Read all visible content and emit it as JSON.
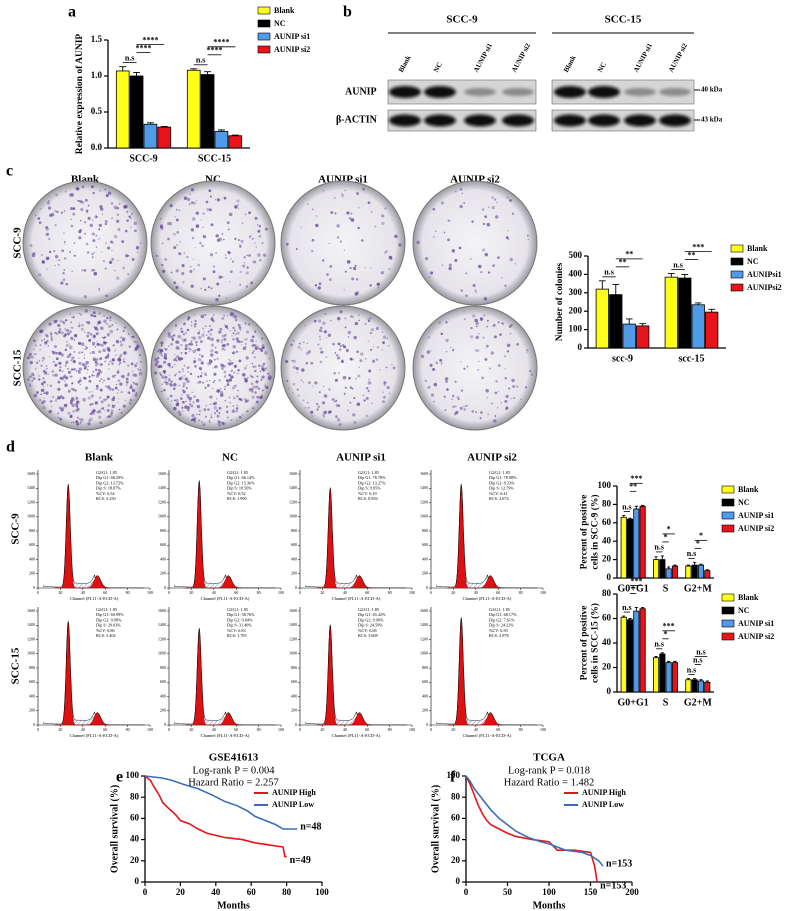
{
  "panel_labels": [
    "a",
    "b",
    "c",
    "d",
    "e",
    "f"
  ],
  "western_blot": {
    "cell_lines": [
      "SCC-9",
      "SCC-15"
    ],
    "lanes": [
      "Blank",
      "NC",
      "AUNIP si1",
      "AUNIP si2"
    ],
    "proteins": [
      "AUNIP",
      "β-ACTIN"
    ],
    "markers": [
      "40 kDa",
      "43 kDa"
    ]
  },
  "colony_assay": {
    "columns": [
      "Blank",
      "NC",
      "AUNIP si1",
      "AUNIP si2"
    ],
    "rows": [
      "SCC-9",
      "SCC-15"
    ]
  },
  "flow_cytometry": {
    "columns": [
      "Blank",
      "NC",
      "AUNIP si1",
      "AUNIP si2"
    ],
    "rows": [
      "SCC-9",
      "SCC-15"
    ],
    "xlabel": "Channel (FL11-A-ECD-A)",
    "xticks": [
      0,
      20,
      40,
      60,
      80,
      100
    ],
    "yticks": [
      0,
      200,
      400,
      600,
      800,
      1000,
      1200,
      1400,
      1600
    ],
    "stats": [
      [
        [
          "G2/G1: 1.85",
          "Dip G1: 68.20%",
          "Dip G2: 13.72%",
          "Dip S: 18.07%",
          "%CV: 6.54",
          "RCS: 3.250"
        ],
        [
          "G2/G1: 1.85",
          "Dip G1: 66.14%",
          "Dip G2: 15.36%",
          "Dip S: 18.50%",
          "%CV: 6.52",
          "RCS: 1.990"
        ],
        [
          "G2/G1: 1.85",
          "Dip G1: 76.78%",
          "Dip G2: 13.27%",
          "Dip S: 9.95%",
          "%CV: 6.19",
          "RCS: 0.956"
        ],
        [
          "G2/G1: 1.85",
          "Dip G1: 78.98%",
          "Dip G2: 8.33%",
          "Dip S: 12.79%",
          "%CV: 6.41",
          "RCS: 2.674"
        ]
      ],
      [
        [
          "G2/G1: 1.85",
          "Dip G1: 60.99%",
          "Dip G2: 9.98%",
          "Dip S: 29.03%",
          "%CV: 6.86",
          "RCS: 3.404"
        ],
        [
          "G2/G1: 1.85",
          "Dip G1: 58.76%",
          "Dip G2: 9.84%",
          "Dip S: 31.40%",
          "%CV: 6.83",
          "RCS: 1.785"
        ],
        [
          "G2/G1: 1.85",
          "Dip G1: 65.42%",
          "Dip G2: 9.99%",
          "Dip S: 24.59%",
          "%CV: 6.68",
          "RCS: 3.608"
        ],
        [
          "G2/G1: 1.85",
          "Dip G1: 68.17%",
          "Dip G2: 7.61%",
          "Dip S: 24.22%",
          "%CV: 6.50",
          "RCS: 2.978"
        ]
      ]
    ]
  },
  "chart_data": [
    {
      "type": "bar",
      "ylabel": [
        "Relative expression of AUNIP"
      ],
      "categories": [
        "SCC-9",
        "SCC-15"
      ],
      "legend": "outside right",
      "series": [
        {
          "name": "Blank",
          "color": "#ffff1a",
          "values": [
            1.07,
            1.08
          ],
          "errors": [
            0.06,
            0.02
          ]
        },
        {
          "name": "NC",
          "color": "#000000",
          "values": [
            1.0,
            1.02
          ],
          "errors": [
            0.05,
            0.04
          ]
        },
        {
          "name": "AUNIP si1",
          "color": "#4f9be8",
          "values": [
            0.33,
            0.23
          ],
          "errors": [
            0.02,
            0.02
          ]
        },
        {
          "name": "AUNIP si2",
          "color": "#e8141b",
          "values": [
            0.29,
            0.17
          ],
          "errors": [
            0.01,
            0.01
          ]
        }
      ],
      "ylim": [
        0,
        1.5
      ],
      "yticks": [
        {
          "value": 0,
          "label": "0.0"
        },
        0.5,
        {
          "value": 1,
          "label": "1.0"
        },
        1.5
      ],
      "annotations": [
        [
          "n.s",
          "****",
          "****"
        ],
        [
          "n.s",
          "****",
          "****"
        ]
      ]
    },
    {
      "type": "bar",
      "ylabel": [
        "Number of colonies"
      ],
      "categories": [
        "scc-9",
        "scc-15"
      ],
      "legend": "outside right",
      "series": [
        {
          "name": "Blank",
          "color": "#ffff1a",
          "values": [
            320,
            385
          ],
          "errors": [
            45,
            20
          ]
        },
        {
          "name": "NC",
          "color": "#000000",
          "values": [
            290,
            380
          ],
          "errors": [
            55,
            20
          ]
        },
        {
          "name": "AUNIPsi1",
          "color": "#4f9be8",
          "values": [
            130,
            235
          ],
          "errors": [
            28,
            10
          ]
        },
        {
          "name": "AUNIPsi2",
          "color": "#e8141b",
          "values": [
            120,
            195
          ],
          "errors": [
            12,
            15
          ]
        }
      ],
      "ylim": [
        0,
        500
      ],
      "yticks": [
        0,
        100,
        200,
        300,
        400,
        500
      ],
      "annotations": [
        [
          "n.s",
          "**",
          "**"
        ],
        [
          "n.s",
          "**",
          "***"
        ]
      ]
    },
    {
      "type": "bar",
      "ylabel": [
        "Percent of positive",
        "cells in SCC-9 (%)"
      ],
      "categories": [
        "G0+G1",
        "S",
        "G2+M"
      ],
      "legend": "outside right",
      "series": [
        {
          "name": "Blank",
          "color": "#ffff1a",
          "values": [
            66,
            20,
            13
          ],
          "errors": [
            2,
            3,
            1
          ]
        },
        {
          "name": "NC",
          "color": "#000000",
          "values": [
            64,
            20,
            14
          ],
          "errors": [
            1,
            4,
            3
          ]
        },
        {
          "name": "AUNIP si1",
          "color": "#4f9be8",
          "values": [
            75,
            10,
            14
          ],
          "errors": [
            3,
            2,
            1
          ]
        },
        {
          "name": "AUNIP si2",
          "color": "#e8141b",
          "values": [
            78,
            13,
            8
          ],
          "errors": [
            1,
            1,
            1
          ]
        }
      ],
      "ylim": [
        0,
        100
      ],
      "yticks": [
        0,
        20,
        40,
        60,
        80,
        100
      ],
      "annotations": [
        [
          "n.s",
          "**",
          "***"
        ],
        [
          "n.s",
          "*",
          "*"
        ],
        [
          "n.s",
          "*",
          "*"
        ]
      ]
    },
    {
      "type": "bar",
      "ylabel": [
        "Percent of positive",
        "cells in SCC-15 (%)"
      ],
      "categories": [
        "G0+G1",
        "S",
        "G2+M"
      ],
      "legend": "outside right",
      "series": [
        {
          "name": "Blank",
          "color": "#ffff1a",
          "values": [
            61,
            28,
            10
          ],
          "errors": [
            1,
            1,
            1
          ]
        },
        {
          "name": "NC",
          "color": "#000000",
          "values": [
            59,
            31,
            10
          ],
          "errors": [
            1,
            1,
            1
          ]
        },
        {
          "name": "AUNIP si1",
          "color": "#4f9be8",
          "values": [
            66,
            24,
            9
          ],
          "errors": [
            3,
            1,
            1
          ]
        },
        {
          "name": "AUNIP si2",
          "color": "#e8141b",
          "values": [
            68,
            24,
            8
          ],
          "errors": [
            1,
            1,
            1
          ]
        }
      ],
      "ylim": [
        0,
        80
      ],
      "yticks": [
        0,
        20,
        40,
        60,
        80
      ],
      "annotations": [
        [
          "n.s",
          "*",
          "***"
        ],
        [
          "n.s",
          "*",
          "***"
        ],
        [
          "n.s",
          "n.s",
          "n.s"
        ]
      ]
    },
    {
      "type": "line",
      "title": "GSE41613",
      "stats": [
        "Log-rank P = 0.004",
        "Hazard Ratio = 2.257"
      ],
      "xlabel": "Months",
      "ylabel": [
        "Overall survival (%)"
      ],
      "legend": "upper right",
      "series": [
        {
          "name": "AUNIP High",
          "color": "#e8141b",
          "n_label": "n=49",
          "x": [
            0,
            3,
            5,
            8,
            10,
            13,
            17,
            20,
            25,
            30,
            35,
            40,
            45,
            55,
            62,
            70,
            78,
            79,
            80
          ],
          "values": [
            100,
            96,
            90,
            82,
            75,
            70,
            64,
            58,
            55,
            50,
            46,
            44,
            42,
            40,
            37,
            35,
            33,
            24,
            24
          ]
        },
        {
          "name": "AUNIP Low",
          "color": "#3a6fb8",
          "n_label": "n=48",
          "x": [
            0,
            10,
            15,
            22,
            30,
            38,
            45,
            52,
            58,
            62,
            68,
            74,
            78,
            86
          ],
          "values": [
            100,
            98,
            96,
            92,
            88,
            82,
            76,
            72,
            67,
            62,
            58,
            54,
            50,
            50
          ]
        }
      ],
      "xlim": [
        0,
        100
      ],
      "xticks": [
        0,
        20,
        40,
        60,
        80,
        100
      ],
      "ylim": [
        0,
        100
      ],
      "yticks": [
        0,
        20,
        40,
        60,
        80,
        100
      ]
    },
    {
      "type": "line",
      "title": "TCGA",
      "stats": [
        "Log-rank P = 0.018",
        "Hazard Ratio = 1.482"
      ],
      "xlabel": "Months",
      "ylabel": [
        "Overall survival (%)"
      ],
      "legend": "upper right",
      "series": [
        {
          "name": "AUNIP High",
          "color": "#e8141b",
          "n_label": "n=153",
          "x": [
            0,
            5,
            10,
            15,
            20,
            25,
            30,
            40,
            50,
            60,
            80,
            100,
            110,
            130,
            150,
            155,
            158
          ],
          "values": [
            100,
            92,
            82,
            72,
            64,
            58,
            54,
            50,
            46,
            43,
            40,
            38,
            30,
            30,
            28,
            15,
            0
          ]
        },
        {
          "name": "AUNIP Low",
          "color": "#3a6fb8",
          "n_label": "n=153",
          "x": [
            0,
            5,
            10,
            20,
            30,
            40,
            50,
            60,
            75,
            90,
            100,
            120,
            140,
            150,
            160,
            165
          ],
          "values": [
            100,
            95,
            88,
            78,
            68,
            60,
            54,
            48,
            42,
            38,
            36,
            30,
            28,
            25,
            20,
            15
          ]
        }
      ],
      "xlim": [
        0,
        200
      ],
      "xticks": [
        0,
        50,
        100,
        150,
        200
      ],
      "ylim": [
        0,
        100
      ],
      "yticks": [
        0,
        20,
        40,
        60,
        80,
        100
      ]
    }
  ]
}
